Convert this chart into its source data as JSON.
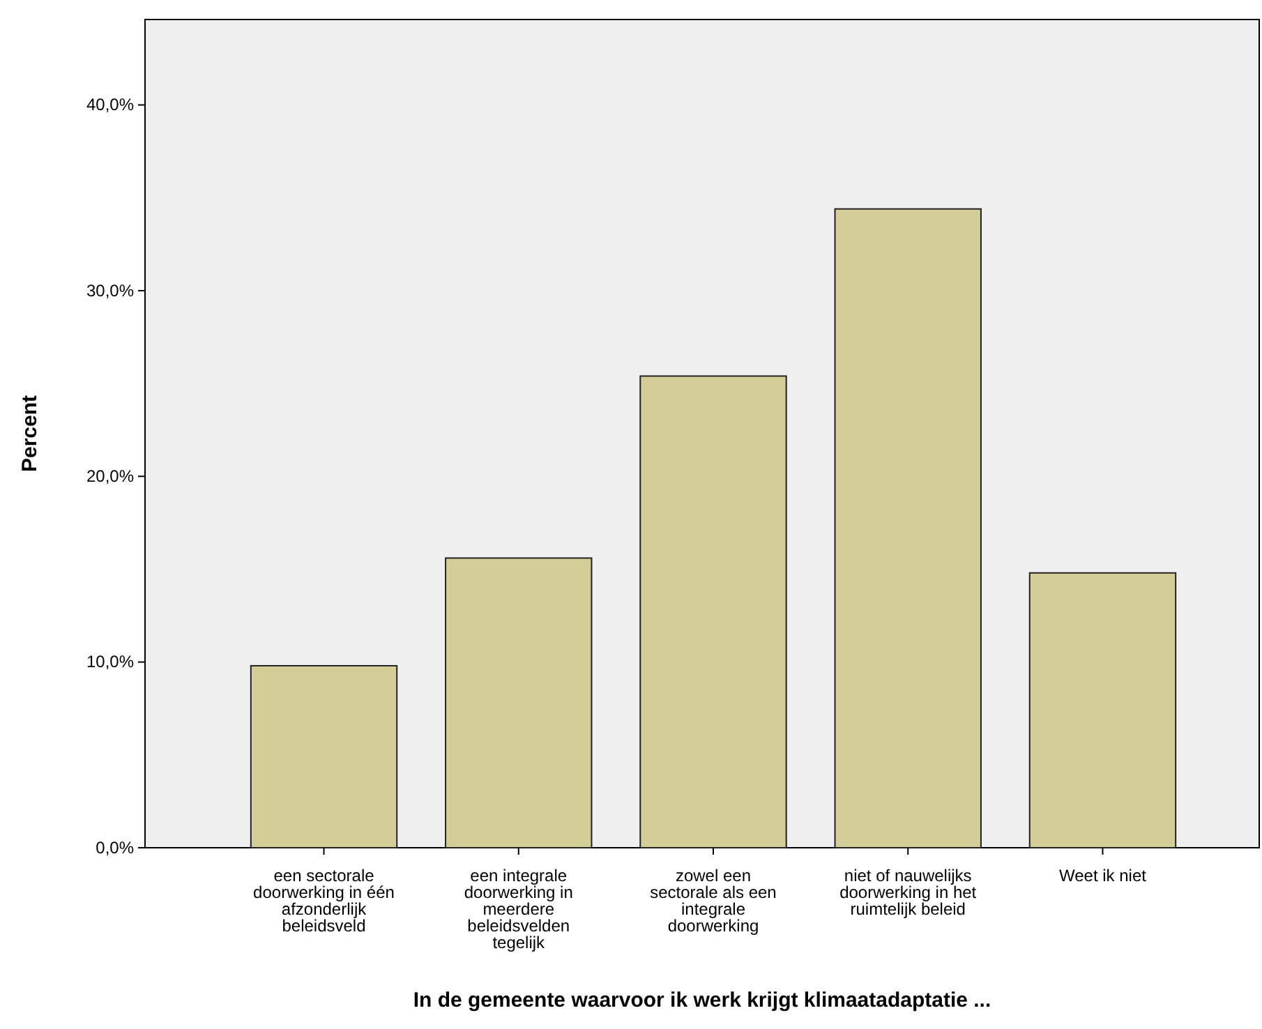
{
  "chart_data": {
    "type": "bar",
    "xlabel": "In de gemeente waarvoor ik werk krijgt klimaatadaptatie ...",
    "ylabel": "Percent",
    "categories": [
      "een sectorale doorwerking in één afzonderlijk beleidsveld",
      "een integrale doorwerking in meerdere beleidsvelden tegelijk",
      "zowel een sectorale als een integrale doorwerking",
      "niet of nauwelijks doorwerking in het ruimtelijk beleid",
      "Weet ik niet"
    ],
    "values": [
      9.8,
      15.6,
      25.4,
      34.4,
      14.8
    ],
    "color": "#d3ce98",
    "ylim": [
      0,
      44.6
    ],
    "yticks": [
      {
        "value": 0,
        "label": "0,0%"
      },
      {
        "value": 10,
        "label": "10,0%"
      },
      {
        "value": 20,
        "label": "20,0%"
      },
      {
        "value": 30,
        "label": "30,0%"
      },
      {
        "value": 40,
        "label": "40,0%"
      }
    ],
    "grid": false
  }
}
